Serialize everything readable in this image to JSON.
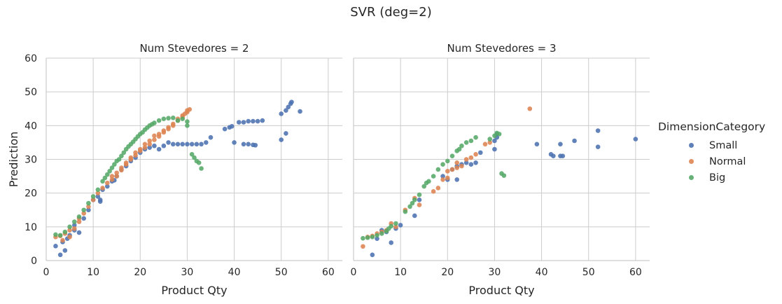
{
  "title": "SVR (deg=2)",
  "legend": {
    "title": "DimensionCategory",
    "entries": [
      {
        "label": "Small",
        "color": "#4c72b0"
      },
      {
        "label": "Normal",
        "color": "#dd8452"
      },
      {
        "label": "Big",
        "color": "#55a868"
      }
    ]
  },
  "chart_data": [
    {
      "type": "scatter",
      "title": "Num Stevedores = 2",
      "xlabel": "Product Qty",
      "ylabel": "Prediction",
      "xlim": [
        0,
        63
      ],
      "ylim": [
        0,
        60
      ],
      "xticks": [
        0,
        10,
        20,
        30,
        40,
        50,
        60
      ],
      "yticks": [
        0,
        10,
        20,
        30,
        40,
        50,
        60
      ],
      "grid": true,
      "legend_position": "right",
      "series": [
        {
          "name": "Small",
          "color": "#4c72b0",
          "points": [
            [
              2,
              4.3
            ],
            [
              3,
              1.7
            ],
            [
              3.5,
              5.5
            ],
            [
              4,
              3
            ],
            [
              4.5,
              6.5
            ],
            [
              5,
              7.5
            ],
            [
              6,
              9
            ],
            [
              6,
              10.5
            ],
            [
              7,
              8.3
            ],
            [
              8,
              12.5
            ],
            [
              9,
              15
            ],
            [
              10,
              18
            ],
            [
              11,
              19
            ],
            [
              11.5,
              18
            ],
            [
              11.5,
              17.5
            ],
            [
              12,
              21
            ],
            [
              13,
              22
            ],
            [
              14,
              23.5
            ],
            [
              14.5,
              23.8
            ],
            [
              15,
              25
            ],
            [
              16,
              27
            ],
            [
              17,
              28
            ],
            [
              18,
              29.5
            ],
            [
              19,
              30.5
            ],
            [
              20,
              32
            ],
            [
              21,
              33
            ],
            [
              22,
              33.5
            ],
            [
              23,
              34
            ],
            [
              24,
              33
            ],
            [
              25,
              34
            ],
            [
              26,
              35
            ],
            [
              27,
              34.5
            ],
            [
              28,
              34.5
            ],
            [
              29,
              34.5
            ],
            [
              30,
              34.5
            ],
            [
              31,
              34.5
            ],
            [
              32,
              34.5
            ],
            [
              33,
              34.5
            ],
            [
              34,
              35
            ],
            [
              35,
              36.5
            ],
            [
              38,
              39
            ],
            [
              39,
              39.5
            ],
            [
              39.5,
              39.8
            ],
            [
              40,
              35
            ],
            [
              41,
              41
            ],
            [
              42,
              41
            ],
            [
              43,
              41.3
            ],
            [
              44,
              41.3
            ],
            [
              45,
              41.3
            ],
            [
              42,
              34.5
            ],
            [
              43,
              34.5
            ],
            [
              44,
              34.3
            ],
            [
              44.5,
              34.2
            ],
            [
              46,
              41.5
            ],
            [
              50,
              35.8
            ],
            [
              50,
              43.5
            ],
            [
              51,
              37.7
            ],
            [
              51,
              44.5
            ],
            [
              51.5,
              45.5
            ],
            [
              52,
              46.5
            ],
            [
              52.2,
              47
            ],
            [
              54,
              44.2
            ]
          ]
        },
        {
          "name": "Normal",
          "color": "#dd8452",
          "points": [
            [
              2,
              7
            ],
            [
              3,
              7.3
            ],
            [
              3.5,
              6
            ],
            [
              4,
              8
            ],
            [
              5,
              7
            ],
            [
              5,
              9
            ],
            [
              6,
              9.5
            ],
            [
              7,
              11.5
            ],
            [
              7,
              12.5
            ],
            [
              8,
              14
            ],
            [
              9,
              16
            ],
            [
              10,
              18
            ],
            [
              11,
              20
            ],
            [
              12,
              21.5
            ],
            [
              13,
              23
            ],
            [
              14,
              25
            ],
            [
              15,
              26
            ],
            [
              16,
              27.5
            ],
            [
              17,
              29
            ],
            [
              18,
              30.5
            ],
            [
              19,
              32
            ],
            [
              20,
              33
            ],
            [
              21,
              34.5
            ],
            [
              22,
              35.5
            ],
            [
              23,
              37
            ],
            [
              24,
              37.5
            ],
            [
              25,
              38.5
            ],
            [
              26,
              39.5
            ],
            [
              27,
              40.5
            ],
            [
              28,
              42
            ],
            [
              29,
              43
            ],
            [
              29.5,
              43.5
            ],
            [
              30,
              44
            ],
            [
              30.5,
              44.8
            ],
            [
              14,
              24
            ],
            [
              15,
              25
            ],
            [
              16,
              26.8
            ],
            [
              17,
              28.5
            ],
            [
              18,
              30
            ],
            [
              19,
              31.2
            ],
            [
              20,
              32.5
            ],
            [
              21,
              33.5
            ],
            [
              22,
              34.5
            ],
            [
              23,
              35.8
            ],
            [
              24,
              36.8
            ],
            [
              25,
              38
            ],
            [
              26,
              39
            ],
            [
              27,
              40
            ],
            [
              28,
              41.5
            ],
            [
              29,
              42.5
            ],
            [
              30,
              44.5
            ]
          ]
        },
        {
          "name": "Big",
          "color": "#55a868",
          "points": [
            [
              2,
              7.7
            ],
            [
              3,
              7.5
            ],
            [
              4,
              8.5
            ],
            [
              5,
              10
            ],
            [
              6,
              11.5
            ],
            [
              7,
              13
            ],
            [
              8,
              15
            ],
            [
              9,
              17
            ],
            [
              10,
              19
            ],
            [
              11,
              21
            ],
            [
              12,
              23.5
            ],
            [
              13,
              25.5
            ],
            [
              14,
              27.5
            ],
            [
              15,
              29.5
            ],
            [
              16,
              31
            ],
            [
              17,
              33
            ],
            [
              18,
              34.5
            ],
            [
              19,
              36
            ],
            [
              20,
              37.5
            ],
            [
              21,
              38.8
            ],
            [
              22,
              40
            ],
            [
              23,
              40.8
            ],
            [
              24,
              41.5
            ],
            [
              25,
              42
            ],
            [
              26,
              42.2
            ],
            [
              27,
              42.3
            ],
            [
              28,
              41.5
            ],
            [
              29,
              42
            ],
            [
              30,
              41.2
            ],
            [
              30,
              40
            ],
            [
              31,
              31.5
            ],
            [
              31.5,
              30.5
            ],
            [
              32,
              29.5
            ],
            [
              32.5,
              29
            ],
            [
              33,
              27.3
            ],
            [
              12.5,
              24.5
            ],
            [
              13.5,
              26.5
            ],
            [
              14.5,
              28.5
            ],
            [
              15.5,
              30
            ],
            [
              16.5,
              32
            ],
            [
              17.5,
              33.8
            ],
            [
              18.5,
              35.2
            ],
            [
              19.5,
              36.8
            ],
            [
              20.5,
              38
            ],
            [
              21.5,
              39.4
            ],
            [
              22.5,
              40.4
            ]
          ]
        }
      ]
    },
    {
      "type": "scatter",
      "title": "Num Stevedores = 3",
      "xlabel": "Product Qty",
      "ylabel": "",
      "xlim": [
        0,
        63
      ],
      "ylim": [
        0,
        60
      ],
      "xticks": [
        0,
        10,
        20,
        30,
        40,
        50,
        60
      ],
      "yticks": [
        0,
        10,
        20,
        30,
        40,
        50,
        60
      ],
      "grid": true,
      "series": [
        {
          "name": "Small",
          "color": "#4c72b0",
          "points": [
            [
              4,
              1.7
            ],
            [
              5,
              6.5
            ],
            [
              6,
              9
            ],
            [
              7,
              8.5
            ],
            [
              8,
              5.3
            ],
            [
              9,
              9.5
            ],
            [
              10,
              10.5
            ],
            [
              13,
              13.3
            ],
            [
              14,
              18
            ],
            [
              19,
              25
            ],
            [
              20,
              24
            ],
            [
              21,
              27
            ],
            [
              22,
              24
            ],
            [
              22,
              28
            ],
            [
              23,
              28.5
            ],
            [
              24,
              29
            ],
            [
              25,
              28.5
            ],
            [
              26,
              29
            ],
            [
              27,
              32
            ],
            [
              30,
              33
            ],
            [
              30,
              35.5
            ],
            [
              30.5,
              36.5
            ],
            [
              30.5,
              37.5
            ],
            [
              39,
              34.5
            ],
            [
              42,
              31.5
            ],
            [
              42.5,
              31
            ],
            [
              44,
              31
            ],
            [
              44.5,
              31
            ],
            [
              44,
              34.5
            ],
            [
              47,
              35.5
            ],
            [
              52,
              38.5
            ],
            [
              52,
              33.7
            ],
            [
              60,
              36
            ]
          ]
        },
        {
          "name": "Normal",
          "color": "#dd8452",
          "points": [
            [
              2,
              4.2
            ],
            [
              3,
              7
            ],
            [
              4,
              7.3
            ],
            [
              5,
              8
            ],
            [
              6,
              8.5
            ],
            [
              7,
              9
            ],
            [
              8,
              11
            ],
            [
              9,
              10
            ],
            [
              11,
              15
            ],
            [
              13,
              18.5
            ],
            [
              14,
              16.5
            ],
            [
              17,
              20.5
            ],
            [
              18,
              21.5
            ],
            [
              19,
              24
            ],
            [
              20,
              24.5
            ],
            [
              20,
              26.5
            ],
            [
              21,
              27
            ],
            [
              22,
              27.5
            ],
            [
              22,
              29
            ],
            [
              23,
              28
            ],
            [
              24,
              30
            ],
            [
              25,
              30.5
            ],
            [
              26,
              31.5
            ],
            [
              28,
              34.5
            ],
            [
              29,
              35
            ],
            [
              37.5,
              45
            ]
          ]
        },
        {
          "name": "Big",
          "color": "#55a868",
          "points": [
            [
              2,
              6.6
            ],
            [
              3,
              6.8
            ],
            [
              4,
              7
            ],
            [
              5,
              7.5
            ],
            [
              6,
              8
            ],
            [
              7,
              8.7
            ],
            [
              7.5,
              9.5
            ],
            [
              8,
              10.2
            ],
            [
              9,
              11
            ],
            [
              11,
              14.5
            ],
            [
              12,
              16
            ],
            [
              12.5,
              17
            ],
            [
              13,
              18
            ],
            [
              14,
              19.5
            ],
            [
              15,
              22
            ],
            [
              15.5,
              23
            ],
            [
              16,
              23.5
            ],
            [
              17,
              25
            ],
            [
              18,
              27
            ],
            [
              19,
              28.5
            ],
            [
              20,
              29.5
            ],
            [
              21,
              31
            ],
            [
              22,
              32.5
            ],
            [
              22.5,
              33
            ],
            [
              23,
              34
            ],
            [
              24,
              35
            ],
            [
              25,
              35.5
            ],
            [
              26,
              36.5
            ],
            [
              29,
              36
            ],
            [
              30,
              37
            ],
            [
              30.5,
              37.8
            ],
            [
              31,
              37.5
            ],
            [
              31.5,
              25.8
            ],
            [
              32,
              25.2
            ]
          ]
        }
      ]
    }
  ]
}
